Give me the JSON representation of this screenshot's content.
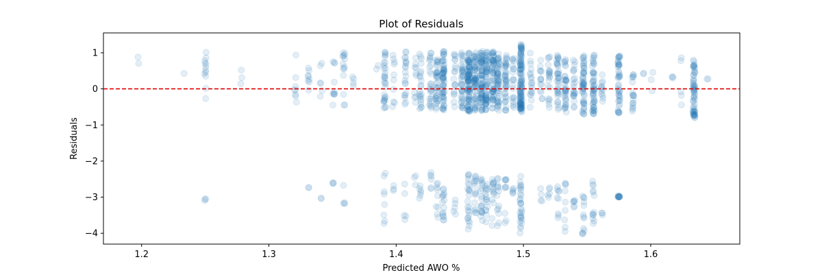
{
  "chart_data": {
    "type": "scatter",
    "title": "Plot of Residuals",
    "xlabel": "Predicted AWO %",
    "ylabel": "Residuals",
    "xlim": [
      1.17,
      1.67
    ],
    "ylim": [
      -4.3,
      1.55
    ],
    "x_ticks": [
      1.2,
      1.3,
      1.4,
      1.5,
      1.6
    ],
    "x_tick_labels": [
      "1.2",
      "1.3",
      "1.4",
      "1.5",
      "1.6"
    ],
    "y_ticks": [
      1,
      0,
      -1,
      -2,
      -3,
      -4
    ],
    "y_tick_labels": [
      "1",
      "0",
      "−1",
      "−2",
      "−3",
      "−4"
    ],
    "grid": false,
    "point_color": "#1f77b4",
    "point_alpha": 0.12,
    "reference_line": {
      "y": 0,
      "color": "#e00000",
      "style": "dashed"
    },
    "clusters": [
      {
        "x": 1.198,
        "upper": [
          0.65,
          0.9
        ],
        "lower": null,
        "density": 2
      },
      {
        "x": 1.233,
        "upper": [
          0.4,
          0.45
        ],
        "lower": null,
        "density": 1
      },
      {
        "x": 1.25,
        "upper": [
          -0.35,
          1.15
        ],
        "lower": [
          -3.45,
          -2.25
        ],
        "density": 12
      },
      {
        "x": 1.278,
        "upper": [
          -0.05,
          0.6
        ],
        "lower": null,
        "density": 3
      },
      {
        "x": 1.321,
        "upper": [
          -0.45,
          1.05
        ],
        "lower": null,
        "density": 8
      },
      {
        "x": 1.331,
        "upper": [
          -0.35,
          1.0
        ],
        "lower": [
          -2.75,
          -2.7
        ],
        "density": 8
      },
      {
        "x": 1.341,
        "upper": [
          -0.3,
          0.85
        ],
        "lower": [
          -3.05,
          -3.0
        ],
        "density": 6
      },
      {
        "x": 1.351,
        "upper": [
          -0.45,
          0.85
        ],
        "lower": [
          -2.65,
          -2.6
        ],
        "density": 10
      },
      {
        "x": 1.359,
        "upper": [
          -0.5,
          1.05
        ],
        "lower": [
          -3.8,
          -2.25
        ],
        "density": 14
      },
      {
        "x": 1.366,
        "upper": [
          -0.2,
          0.65
        ],
        "lower": null,
        "density": 4
      },
      {
        "x": 1.385,
        "upper": [
          0.5,
          0.65
        ],
        "lower": null,
        "density": 2
      },
      {
        "x": 1.391,
        "upper": [
          -0.55,
          1.1
        ],
        "lower": [
          -3.85,
          -2.3
        ],
        "density": 30
      },
      {
        "x": 1.398,
        "upper": [
          -0.5,
          1.05
        ],
        "lower": [
          -3.0,
          -2.55
        ],
        "density": 10
      },
      {
        "x": 1.407,
        "upper": [
          -0.55,
          1.05
        ],
        "lower": [
          -3.65,
          -2.55
        ],
        "density": 20
      },
      {
        "x": 1.415,
        "upper": [
          -0.4,
          1.0
        ],
        "lower": [
          -2.7,
          -2.3
        ],
        "density": 10
      },
      {
        "x": 1.419,
        "upper": [
          -0.6,
          1.05
        ],
        "lower": [
          -3.05,
          -2.6
        ],
        "density": 22
      },
      {
        "x": 1.427,
        "upper": [
          -0.55,
          1.05
        ],
        "lower": [
          -2.95,
          -2.3
        ],
        "density": 25
      },
      {
        "x": 1.432,
        "upper": [
          -0.6,
          1.05
        ],
        "lower": [
          -3.6,
          -2.5
        ],
        "density": 35
      },
      {
        "x": 1.437,
        "upper": [
          -0.6,
          1.05
        ],
        "lower": [
          -3.65,
          -2.6
        ],
        "density": 60
      },
      {
        "x": 1.446,
        "upper": [
          -0.5,
          1.0
        ],
        "lower": [
          -3.6,
          -2.9
        ],
        "density": 18
      },
      {
        "x": 1.452,
        "upper": [
          -0.55,
          1.05
        ],
        "lower": null,
        "density": 40
      },
      {
        "x": 1.457,
        "upper": [
          -0.65,
          1.05
        ],
        "lower": [
          -3.95,
          -2.35
        ],
        "density": 90
      },
      {
        "x": 1.462,
        "upper": [
          -0.6,
          1.05
        ],
        "lower": [
          -3.7,
          -2.4
        ],
        "density": 60
      },
      {
        "x": 1.467,
        "upper": [
          -0.6,
          1.05
        ],
        "lower": [
          -3.8,
          -2.45
        ],
        "density": 70
      },
      {
        "x": 1.471,
        "upper": [
          -0.6,
          1.05
        ],
        "lower": [
          -3.7,
          -2.4
        ],
        "density": 60
      },
      {
        "x": 1.476,
        "upper": [
          -0.6,
          1.05
        ],
        "lower": [
          -3.9,
          -2.45
        ],
        "density": 55
      },
      {
        "x": 1.48,
        "upper": [
          -0.6,
          1.0
        ],
        "lower": [
          -3.8,
          -2.4
        ],
        "density": 50
      },
      {
        "x": 1.486,
        "upper": [
          -0.65,
          1.0
        ],
        "lower": [
          -3.75,
          -2.4
        ],
        "density": 40
      },
      {
        "x": 1.492,
        "upper": [
          -0.55,
          1.0
        ],
        "lower": [
          -3.0,
          -2.7
        ],
        "density": 20
      },
      {
        "x": 1.498,
        "upper": [
          -0.7,
          1.25
        ],
        "lower": [
          -4.0,
          -2.35
        ],
        "density": 110
      },
      {
        "x": 1.506,
        "upper": [
          -0.55,
          1.0
        ],
        "lower": null,
        "density": 18
      },
      {
        "x": 1.514,
        "upper": [
          -0.55,
          0.8
        ],
        "lower": [
          -3.2,
          -2.7
        ],
        "density": 14
      },
      {
        "x": 1.52,
        "upper": [
          -0.6,
          0.9
        ],
        "lower": [
          -3.3,
          -2.7
        ],
        "density": 20
      },
      {
        "x": 1.527,
        "upper": [
          -0.7,
          0.95
        ],
        "lower": [
          -3.6,
          -2.6
        ],
        "density": 35
      },
      {
        "x": 1.533,
        "upper": [
          -0.65,
          0.9
        ],
        "lower": [
          -4.0,
          -2.6
        ],
        "density": 35
      },
      {
        "x": 1.54,
        "upper": [
          -0.6,
          0.9
        ],
        "lower": [
          -3.3,
          -3.0
        ],
        "density": 22
      },
      {
        "x": 1.547,
        "upper": [
          -0.7,
          0.95
        ],
        "lower": [
          -4.05,
          -2.45
        ],
        "density": 50
      },
      {
        "x": 1.555,
        "upper": [
          -0.7,
          0.95
        ],
        "lower": [
          -3.8,
          -2.55
        ],
        "density": 50
      },
      {
        "x": 1.562,
        "upper": [
          -0.5,
          0.4
        ],
        "lower": [
          -3.5,
          -3.4
        ],
        "density": 12
      },
      {
        "x": 1.575,
        "upper": [
          -0.7,
          0.95
        ],
        "lower": [
          -3.0,
          -2.95
        ],
        "density": 45
      },
      {
        "x": 1.586,
        "upper": [
          -0.65,
          0.5
        ],
        "lower": null,
        "density": 18
      },
      {
        "x": 1.594,
        "upper": [
          0.35,
          0.45
        ],
        "lower": null,
        "density": 2
      },
      {
        "x": 1.601,
        "upper": [
          -0.25,
          0.7
        ],
        "lower": null,
        "density": 3
      },
      {
        "x": 1.617,
        "upper": [
          0.25,
          0.4
        ],
        "lower": null,
        "density": 3
      },
      {
        "x": 1.624,
        "upper": [
          -0.55,
          0.9
        ],
        "lower": null,
        "density": 5
      },
      {
        "x": 1.634,
        "upper": [
          -0.8,
          0.85
        ],
        "lower": null,
        "density": 60
      },
      {
        "x": 1.645,
        "upper": [
          0.25,
          0.3
        ],
        "lower": null,
        "density": 2
      }
    ]
  }
}
